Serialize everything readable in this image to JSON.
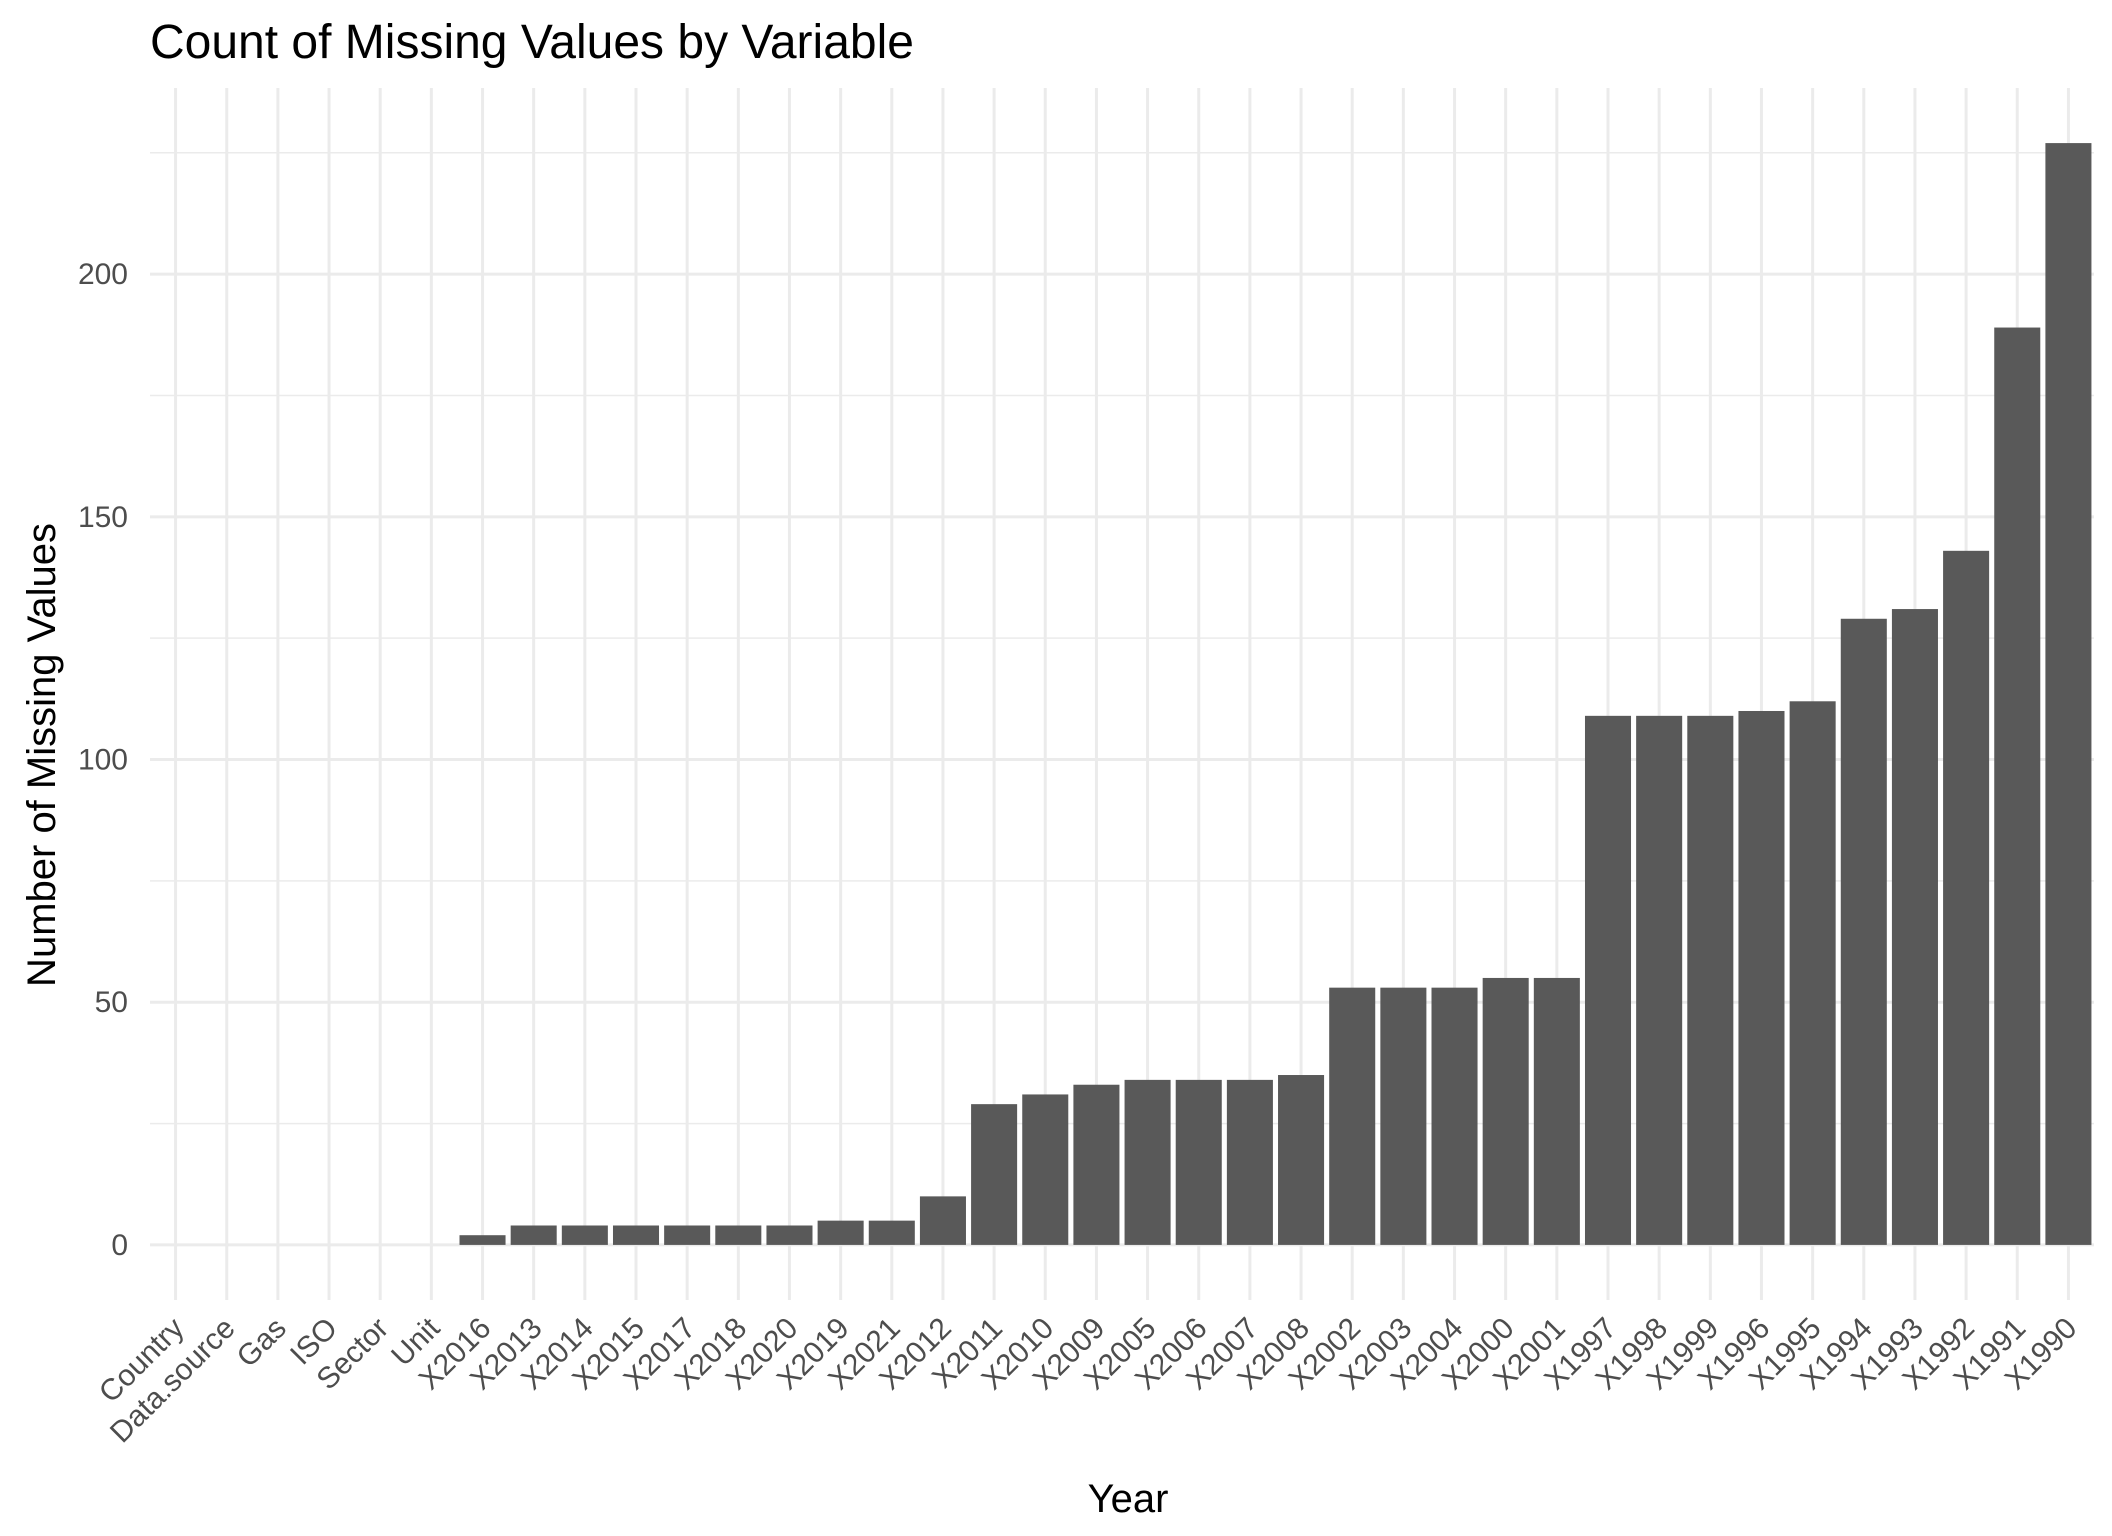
{
  "chart_data": {
    "type": "bar",
    "title": "Count of Missing Values by Variable",
    "xlabel": "Year",
    "ylabel": "Number of Missing Values",
    "categories": [
      "Country",
      "Data.source",
      "Gas",
      "ISO",
      "Sector",
      "Unit",
      "X2016",
      "X2013",
      "X2014",
      "X2015",
      "X2017",
      "X2018",
      "X2020",
      "X2019",
      "X2021",
      "X2012",
      "X2011",
      "X2010",
      "X2009",
      "X2005",
      "X2006",
      "X2007",
      "X2008",
      "X2002",
      "X2003",
      "X2004",
      "X2000",
      "X2001",
      "X1997",
      "X1998",
      "X1999",
      "X1996",
      "X1995",
      "X1994",
      "X1993",
      "X1992",
      "X1991",
      "X1990"
    ],
    "values": [
      0,
      0,
      0,
      0,
      0,
      0,
      2,
      4,
      4,
      4,
      4,
      4,
      4,
      5,
      5,
      10,
      29,
      31,
      33,
      34,
      34,
      34,
      35,
      53,
      53,
      53,
      55,
      55,
      109,
      109,
      109,
      110,
      112,
      129,
      131,
      143,
      189,
      227
    ],
    "ylim": [
      -11.35,
      238.35
    ],
    "yticks": [
      0,
      50,
      100,
      150,
      200
    ],
    "bar_color": "#595959",
    "grid": true,
    "legend": "none"
  }
}
